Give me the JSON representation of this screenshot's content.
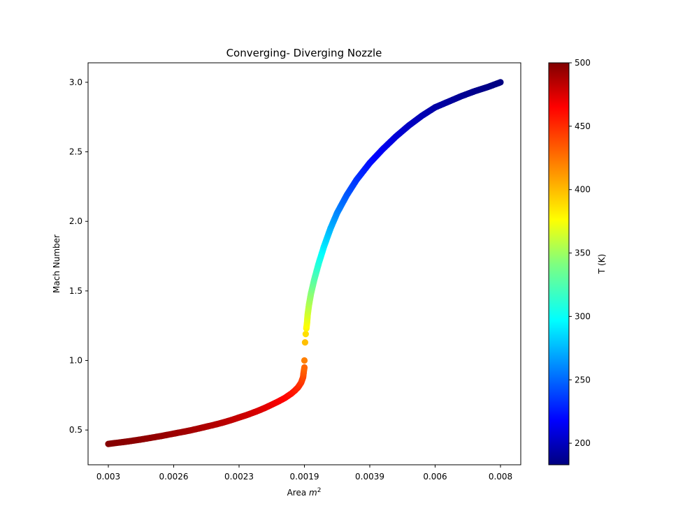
{
  "chart_data": {
    "type": "scatter",
    "title": "Converging- Diverging Nozzle",
    "xlabel": "Area m²",
    "xlabel_base": "Area ",
    "xlabel_var": "m",
    "xlabel_exp": "2",
    "ylabel": "Mach Number",
    "x_tick_labels": [
      "0.003",
      "0.0026",
      "0.0023",
      "0.0019",
      "0.0039",
      "0.006",
      "0.008"
    ],
    "x_index_range": [
      0,
      6
    ],
    "ylim": [
      0.25,
      3.14
    ],
    "y_ticks": [
      0.5,
      1.0,
      1.5,
      2.0,
      2.5,
      3.0
    ],
    "y_tick_labels": [
      "0.5",
      "1.0",
      "1.5",
      "2.0",
      "2.5",
      "3.0"
    ],
    "mach_range": [
      0.4,
      3.0
    ],
    "colormap": "jet",
    "colorbar": {
      "label": "T (K)",
      "range": [
        183,
        500
      ],
      "ticks": [
        200,
        250,
        300,
        350,
        400,
        450,
        500
      ],
      "tick_labels": [
        "200",
        "250",
        "300",
        "350",
        "400",
        "450",
        "500"
      ]
    },
    "points": [
      [
        0.0,
        0.4,
        498.3
      ],
      [
        0.1,
        0.406,
        497.9
      ],
      [
        0.2,
        0.412,
        497.3
      ],
      [
        0.3,
        0.418,
        496.8
      ],
      [
        0.4,
        0.425,
        496.2
      ],
      [
        0.5,
        0.432,
        495.6
      ],
      [
        0.6,
        0.44,
        494.8
      ],
      [
        0.7,
        0.448,
        494.1
      ],
      [
        0.8,
        0.456,
        493.3
      ],
      [
        0.9,
        0.465,
        492.4
      ],
      [
        1.0,
        0.474,
        491.5
      ],
      [
        1.1,
        0.483,
        490.6
      ],
      [
        1.2,
        0.492,
        489.6
      ],
      [
        1.3,
        0.502,
        488.5
      ],
      [
        1.4,
        0.513,
        487.4
      ],
      [
        1.5,
        0.524,
        486.1
      ],
      [
        1.6,
        0.535,
        484.8
      ],
      [
        1.7,
        0.547,
        483.5
      ],
      [
        1.8,
        0.56,
        482.0
      ],
      [
        1.9,
        0.574,
        480.4
      ],
      [
        2.0,
        0.59,
        478.5
      ],
      [
        2.1,
        0.605,
        476.7
      ],
      [
        2.2,
        0.622,
        474.6
      ],
      [
        2.3,
        0.64,
        472.3
      ],
      [
        2.4,
        0.66,
        469.7
      ],
      [
        2.5,
        0.682,
        466.8
      ],
      [
        2.6,
        0.705,
        463.7
      ],
      [
        2.7,
        0.73,
        460.3
      ],
      [
        2.8,
        0.762,
        455.9
      ],
      [
        2.85,
        0.782,
        453.1
      ],
      [
        2.9,
        0.805,
        449.8
      ],
      [
        2.95,
        0.84,
        444.8
      ],
      [
        2.98,
        0.88,
        439.0
      ],
      [
        2.99,
        0.92,
        433.1
      ],
      [
        3.0,
        0.95,
        428.6
      ],
      [
        3.0,
        1.0,
        420.9
      ],
      [
        3.01,
        1.13,
        400.6
      ],
      [
        3.02,
        1.19,
        391.2
      ],
      [
        3.03,
        1.23,
        384.8
      ],
      [
        3.04,
        1.27,
        378.5
      ],
      [
        3.05,
        1.33,
        369.0
      ],
      [
        3.07,
        1.4,
        358.0
      ],
      [
        3.1,
        1.48,
        345.6
      ],
      [
        3.15,
        1.58,
        330.4
      ],
      [
        3.22,
        1.7,
        313.0
      ],
      [
        3.3,
        1.82,
        296.4
      ],
      [
        3.4,
        1.95,
        279.4
      ],
      [
        3.5,
        2.06,
        265.9
      ],
      [
        3.65,
        2.19,
        251.1
      ],
      [
        3.8,
        2.3,
        239.4
      ],
      [
        4.0,
        2.42,
        227.7
      ],
      [
        4.2,
        2.52,
        218.7
      ],
      [
        4.4,
        2.61,
        211.1
      ],
      [
        4.6,
        2.69,
        204.8
      ],
      [
        4.8,
        2.76,
        199.6
      ],
      [
        5.0,
        2.82,
        195.3
      ],
      [
        5.2,
        2.86,
        192.5
      ],
      [
        5.4,
        2.9,
        189.8
      ],
      [
        5.6,
        2.935,
        187.5
      ],
      [
        5.8,
        2.965,
        185.6
      ],
      [
        6.0,
        3.0,
        183.4
      ]
    ]
  }
}
